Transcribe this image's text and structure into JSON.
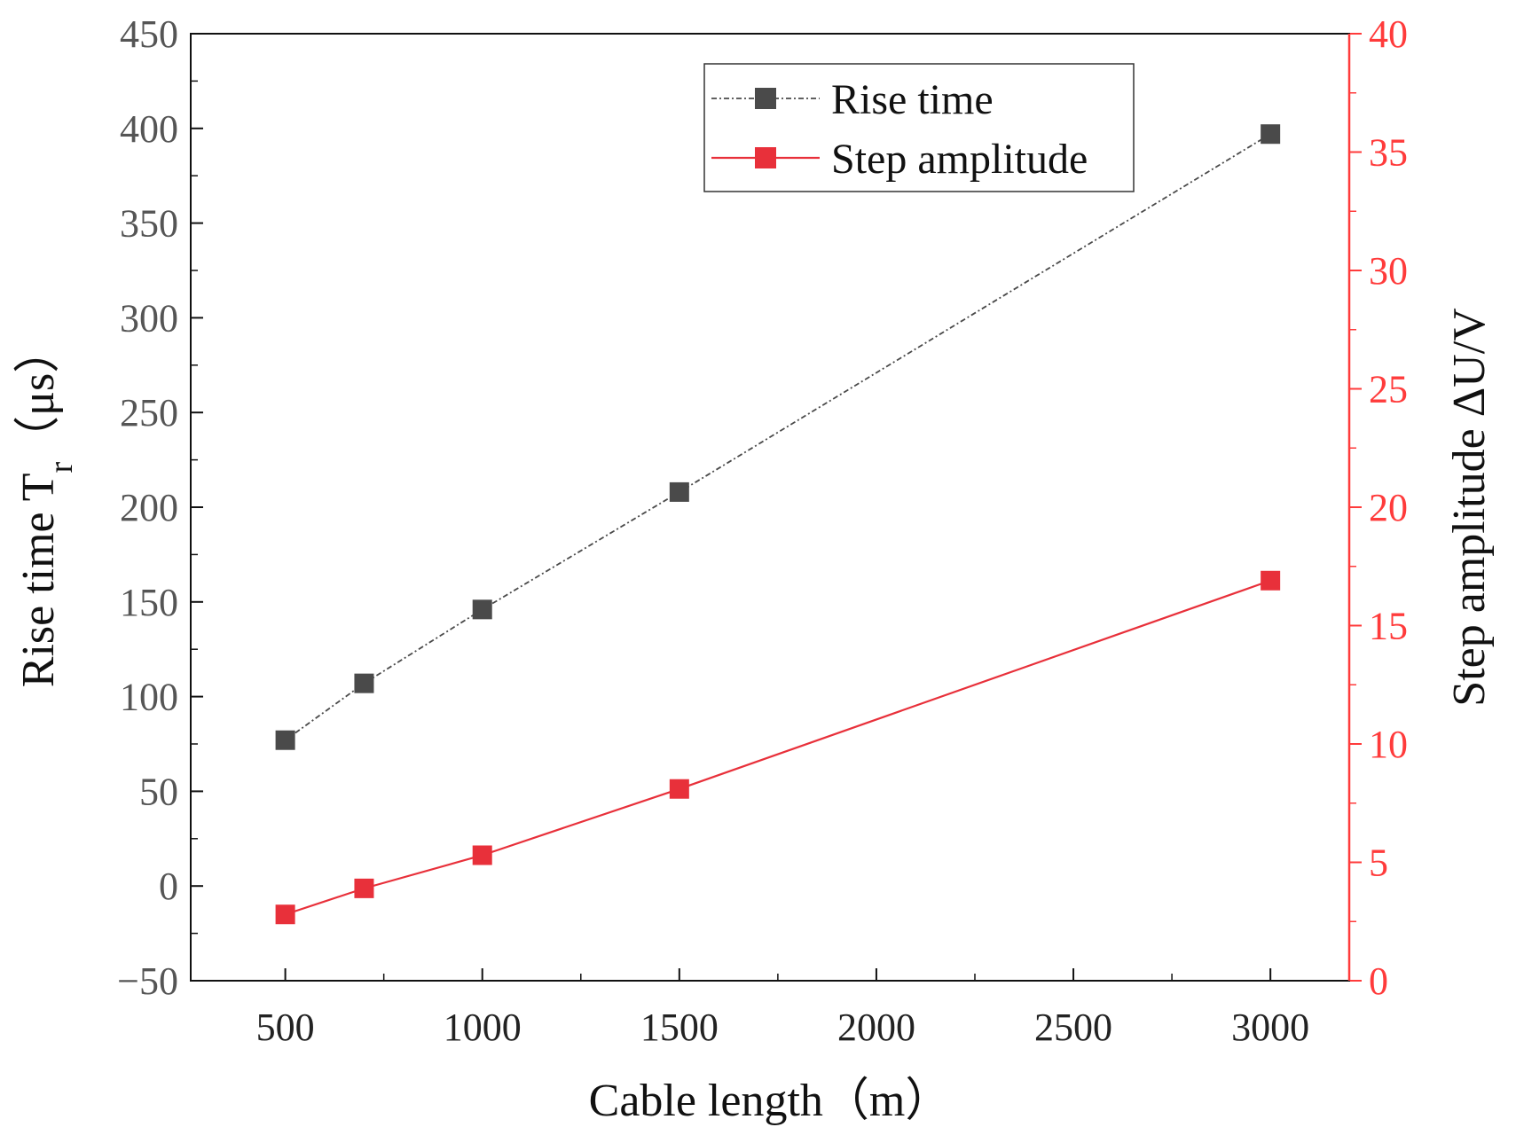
{
  "chart_data": {
    "type": "line",
    "x": [
      500,
      700,
      1000,
      1500,
      3000
    ],
    "xlim": [
      260,
      3200
    ],
    "xticks": [
      "500",
      "1000",
      "1500",
      "2000",
      "2500",
      "3000"
    ],
    "xtick_values": [
      500,
      1000,
      1500,
      2000,
      2500,
      3000
    ],
    "xlabel": "Cable length（m）",
    "y_left": {
      "label_main": "Rise time T",
      "label_sub": "r",
      "label_unit": "（μs）",
      "ylim": [
        -50,
        450
      ],
      "ticks": [
        "−50",
        "0",
        "50",
        "100",
        "150",
        "200",
        "250",
        "300",
        "350",
        "400",
        "450"
      ],
      "tick_values": [
        -50,
        0,
        50,
        100,
        150,
        200,
        250,
        300,
        350,
        400,
        450
      ]
    },
    "y_right": {
      "label": "Step amplitude ΔU/V",
      "ylim": [
        0,
        40
      ],
      "ticks": [
        "0",
        "5",
        "10",
        "15",
        "20",
        "25",
        "30",
        "35",
        "40"
      ],
      "tick_values": [
        0,
        5,
        10,
        15,
        20,
        25,
        30,
        35,
        40
      ]
    },
    "series": [
      {
        "name": "Rise time",
        "axis": "left",
        "values": [
          77,
          107,
          146,
          208,
          397
        ],
        "color": "#4a4a4a",
        "line_style": "dash-dot"
      },
      {
        "name": "Step amplitude",
        "axis": "right",
        "values": [
          2.8,
          3.9,
          5.3,
          8.1,
          16.9
        ],
        "color": "#e8303a",
        "line_style": "solid"
      }
    ],
    "legend_position": "top-center",
    "right_axis_color": "#ff3b3b",
    "frame_color": "#111111"
  }
}
